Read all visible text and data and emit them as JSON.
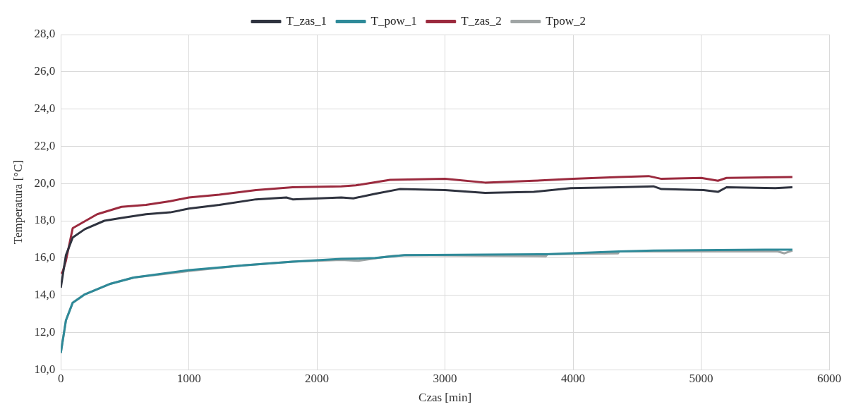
{
  "chart_data": {
    "type": "line",
    "xlabel": "Czas [min]",
    "ylabel": "Temperatura [°C]",
    "legend": "top",
    "grid": true,
    "marker": "none",
    "line_style": "solid",
    "xlim": [
      0,
      6000
    ],
    "xticks": [
      0,
      1000,
      2000,
      3000,
      4000,
      5000,
      6000
    ],
    "ylim": [
      10,
      28
    ],
    "yticks": [
      {
        "value": 10,
        "label": "10,0"
      },
      {
        "value": 12,
        "label": "12,0"
      },
      {
        "value": 14,
        "label": "14,0"
      },
      {
        "value": 16,
        "label": "16,0"
      },
      {
        "value": 18,
        "label": "18,0"
      },
      {
        "value": 20,
        "label": "20,0"
      },
      {
        "value": 22,
        "label": "22,0"
      },
      {
        "value": 24,
        "label": "24,0"
      },
      {
        "value": 26,
        "label": "26,0"
      },
      {
        "value": 28,
        "label": "28,0"
      }
    ],
    "series": [
      {
        "name": "T_zas_1",
        "color": "#2f333f",
        "x": [
          0,
          40,
          93,
          188,
          340,
          474,
          665,
          855,
          1000,
          1238,
          1524,
          1762,
          1810,
          2190,
          2284,
          2455,
          2646,
          3000,
          3313,
          3693,
          3981,
          4360,
          4627,
          4690,
          5019,
          5131,
          5198,
          5579,
          5712
        ],
        "values": [
          14.4,
          16.15,
          17.1,
          17.55,
          18.0,
          18.15,
          18.35,
          18.45,
          18.65,
          18.85,
          19.15,
          19.25,
          19.15,
          19.25,
          19.2,
          19.45,
          19.7,
          19.65,
          19.5,
          19.55,
          19.75,
          19.8,
          19.85,
          19.7,
          19.65,
          19.55,
          19.8,
          19.75,
          19.8
        ]
      },
      {
        "name": "T_pow_1",
        "color": "#2e8a99",
        "x": [
          0,
          40,
          93,
          188,
          380,
          570,
          1000,
          1427,
          1810,
          2190,
          2455,
          2683,
          3788,
          4360,
          4627,
          5500,
          5712
        ],
        "values": [
          10.9,
          12.65,
          13.6,
          14.05,
          14.6,
          14.95,
          15.35,
          15.6,
          15.8,
          15.95,
          16.0,
          16.15,
          16.2,
          16.35,
          16.4,
          16.45,
          16.45
        ]
      },
      {
        "name": "T_zas_2",
        "color": "#9b2a3e",
        "x": [
          0,
          12,
          40,
          93,
          284,
          474,
          665,
          855,
          1000,
          1238,
          1524,
          1810,
          2190,
          2303,
          2571,
          3000,
          3313,
          3693,
          4000,
          4360,
          4590,
          4690,
          5000,
          5131,
          5198,
          5712
        ],
        "values": [
          15.2,
          15.2,
          15.85,
          17.6,
          18.35,
          18.75,
          18.85,
          19.05,
          19.25,
          19.4,
          19.65,
          19.8,
          19.85,
          19.9,
          20.2,
          20.25,
          20.05,
          20.15,
          20.25,
          20.35,
          20.4,
          20.25,
          20.3,
          20.15,
          20.3,
          20.35
        ]
      },
      {
        "name": "Tpow_2",
        "color": "#a0a5a5",
        "x": [
          0,
          40,
          93,
          188,
          380,
          570,
          1000,
          1427,
          1810,
          2190,
          2322,
          2474,
          2570,
          2700,
          3788,
          3800,
          4351,
          4360,
          5598,
          5650,
          5712
        ],
        "values": [
          10.9,
          12.65,
          13.6,
          14.05,
          14.6,
          14.95,
          15.3,
          15.6,
          15.8,
          15.9,
          15.85,
          16.0,
          16.1,
          16.15,
          16.1,
          16.2,
          16.25,
          16.35,
          16.35,
          16.25,
          16.4
        ]
      }
    ]
  }
}
